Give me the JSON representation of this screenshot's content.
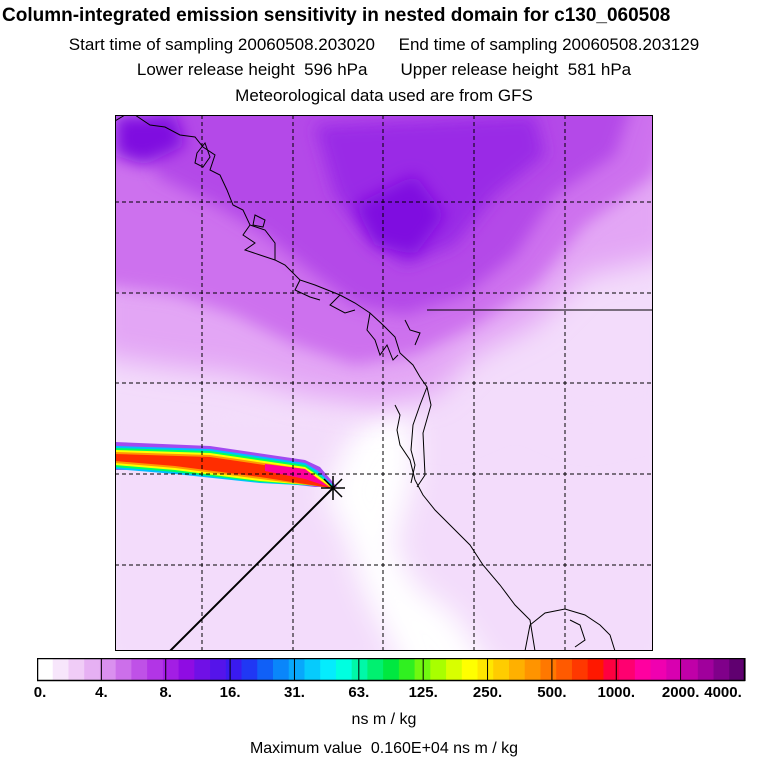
{
  "header": {
    "title": "Column-integrated emission sensitivity in nested domain for c130_060508",
    "sampling_line": "Start time of sampling 20060508.203020     End time of sampling 20060508.203129",
    "height_line": "Lower release height  596 hPa       Upper release height  581 hPa",
    "met_line": "Meteorological data used are from GFS"
  },
  "map": {
    "release_marker": "release-point-star",
    "palette": {
      "p1": "#f3dcfb",
      "p2": "#e3a6f5",
      "p3": "#cd71ee",
      "p4": "#b44ae8",
      "p5": "#9a2ae6",
      "p6": "#7f11e0",
      "coast": "#000000",
      "grid": "#000000"
    },
    "plume_colors": [
      "#a24af0",
      "#00c0ff",
      "#00ff60",
      "#ffff00",
      "#ff9900",
      "#ff2d00",
      "#ff0099"
    ]
  },
  "colorbar": {
    "colors": [
      "#ffffff",
      "#f7e6fb",
      "#f0ccf7",
      "#e6b0f3",
      "#da90ef",
      "#cc6fea",
      "#bf51e7",
      "#b235e6",
      "#a31ee4",
      "#8f0ce3",
      "#7010e6",
      "#5514ea",
      "#3a1aef",
      "#2038f4",
      "#1060f7",
      "#0a86fa",
      "#08a8fb",
      "#06cbfc",
      "#05ecfd",
      "#00ffe0",
      "#00f8a8",
      "#00f070",
      "#00e840",
      "#30f020",
      "#70f810",
      "#a8ff00",
      "#d8ff00",
      "#ffff00",
      "#ffe600",
      "#ffcc00",
      "#ffb000",
      "#ff9400",
      "#ff7800",
      "#ff5a00",
      "#ff3800",
      "#ff1800",
      "#ff0040",
      "#ff0070",
      "#ff00a0",
      "#f000b0",
      "#d800b0",
      "#c000a8",
      "#a0009c",
      "#80008a",
      "#600070"
    ],
    "tick_labels": [
      "0.",
      "4.",
      "8.",
      "16.",
      "31.",
      "63.",
      "125.",
      "250.",
      "500.",
      "1000.",
      "2000.",
      "4000."
    ],
    "units": "ns m / kg",
    "max_value_text": "Maximum value  0.160E+04 ns m / kg"
  }
}
